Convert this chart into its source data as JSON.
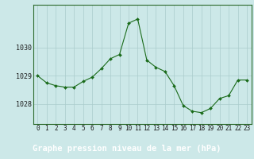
{
  "x": [
    0,
    1,
    2,
    3,
    4,
    5,
    6,
    7,
    8,
    9,
    10,
    11,
    12,
    13,
    14,
    15,
    16,
    17,
    18,
    19,
    20,
    21,
    22,
    23
  ],
  "y": [
    1029.0,
    1028.75,
    1028.65,
    1028.6,
    1028.6,
    1028.8,
    1028.95,
    1029.25,
    1029.6,
    1029.75,
    1030.85,
    1031.0,
    1029.55,
    1029.3,
    1029.15,
    1028.65,
    1027.95,
    1027.75,
    1027.7,
    1027.85,
    1028.2,
    1028.3,
    1028.85,
    1028.85
  ],
  "line_color": "#1a6b1a",
  "marker_color": "#1a6b1a",
  "bg_color": "#cce8e8",
  "grid_color": "#aacccc",
  "xlabel": "Graphe pression niveau de la mer (hPa)",
  "xlabel_fontsize": 7.5,
  "tick_labels": [
    "0",
    "1",
    "2",
    "3",
    "4",
    "5",
    "6",
    "7",
    "8",
    "9",
    "10",
    "11",
    "12",
    "13",
    "14",
    "15",
    "16",
    "17",
    "18",
    "19",
    "20",
    "21",
    "22",
    "23"
  ],
  "yticks": [
    1028,
    1029,
    1030
  ],
  "ylim": [
    1027.3,
    1031.5
  ],
  "xlim": [
    -0.5,
    23.5
  ],
  "bottom_bar_color": "#2d6b2d",
  "spine_color": "#2d6b2d"
}
